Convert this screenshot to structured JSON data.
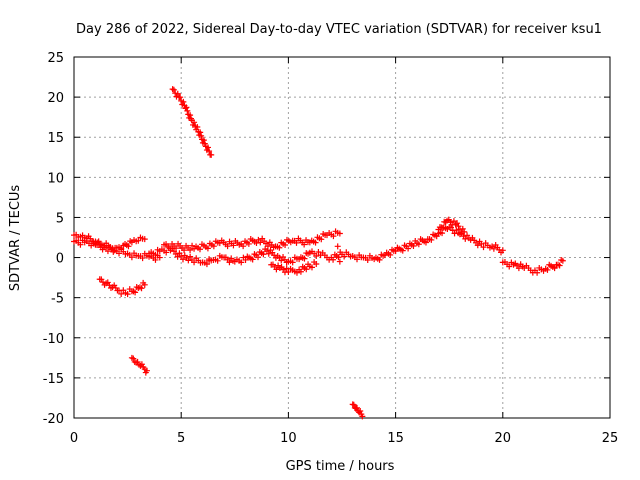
{
  "chart_data": {
    "type": "scatter",
    "title": "Day 286 of 2022, Sidereal Day-to-day VTEC variation (SDTVAR) for receiver ksu1",
    "xlabel": "GPS time / hours",
    "ylabel": "SDTVAR / TECUs",
    "xlim": [
      0,
      25
    ],
    "ylim": [
      -20,
      25
    ],
    "xticks": [
      0,
      5,
      10,
      15,
      20,
      25
    ],
    "yticks": [
      -20,
      -15,
      -10,
      -5,
      0,
      5,
      10,
      15,
      20,
      25
    ],
    "grid": true,
    "marker": "+",
    "marker_color": "#ff0000",
    "series": [
      {
        "name": "main_band_upper",
        "x": [
          0,
          0.3,
          0.6,
          1,
          1.3,
          1.7,
          2,
          2.3,
          2.7,
          3,
          3.3
        ],
        "y": [
          2.8,
          2.6,
          2.4,
          2.0,
          1.6,
          1.3,
          1.2,
          1.5,
          1.9,
          2.1,
          2.3
        ]
      },
      {
        "name": "main_band_lower",
        "x": [
          0,
          0.5,
          1,
          1.5,
          2,
          2.5,
          3,
          3.5,
          4
        ],
        "y": [
          2.0,
          1.9,
          1.6,
          1.2,
          0.8,
          0.5,
          0.2,
          0.1,
          0.0
        ]
      },
      {
        "name": "evening_arc",
        "x": [
          1.2,
          1.5,
          1.8,
          2.1,
          2.4,
          2.7,
          3,
          3.3
        ],
        "y": [
          -2.7,
          -3.2,
          -3.7,
          -4.1,
          -4.4,
          -4.2,
          -3.8,
          -3.4
        ]
      },
      {
        "name": "main_band_mid",
        "x": [
          3.5,
          4,
          4.5,
          5,
          5.5,
          6,
          6.5,
          7,
          7.5,
          8,
          8.5,
          9,
          9.5,
          10,
          10.5,
          11,
          11.5,
          12,
          12.5,
          13,
          13.5,
          14,
          14.5,
          15,
          15.5,
          16,
          16.5,
          17,
          17.5,
          18,
          18.5,
          19,
          19.5,
          20
        ],
        "y": [
          0.5,
          0.8,
          0.9,
          0.2,
          -0.3,
          -0.6,
          -0.3,
          0.0,
          -0.5,
          -0.3,
          0.3,
          0.8,
          0.2,
          -0.5,
          -0.2,
          0.6,
          0.3,
          0.0,
          0.4,
          0.2,
          0.0,
          -0.2,
          0.3,
          0.8,
          1.4,
          1.8,
          2.3,
          3.0,
          3.8,
          2.9,
          2.2,
          1.7,
          1.4,
          0.9
        ]
      },
      {
        "name": "main_band_bumps",
        "x": [
          4.2,
          5.6,
          6.8,
          7.8,
          8.6,
          9.4,
          10.2,
          11.0,
          11.8,
          12.4
        ],
        "y": [
          1.6,
          1.1,
          1.8,
          1.7,
          2.2,
          1.4,
          2.1,
          1.9,
          2.8,
          3.0
        ]
      },
      {
        "name": "late_band",
        "x": [
          20,
          20.5,
          21,
          21.5,
          22,
          22.5,
          22.8
        ],
        "y": [
          -0.6,
          -0.9,
          -1.3,
          -1.6,
          -1.4,
          -0.9,
          -0.4
        ]
      },
      {
        "name": "dip_track",
        "x": [
          9.2,
          9.6,
          10,
          10.5,
          11,
          11.3
        ],
        "y": [
          -0.9,
          -1.3,
          -1.8,
          -1.5,
          -1.1,
          -0.8
        ]
      },
      {
        "name": "rising_arc",
        "x": [
          17.0,
          17.4,
          17.8,
          18.2
        ],
        "y": [
          3.5,
          4.6,
          4.1,
          3.2
        ]
      },
      {
        "name": "steep_track_high",
        "x": [
          4.6,
          4.9,
          5.2,
          5.5,
          5.8,
          6.1,
          6.4
        ],
        "y": [
          21.0,
          20.0,
          18.6,
          17.1,
          15.7,
          14.2,
          12.8
        ]
      },
      {
        "name": "steep_track_low",
        "x": [
          2.7,
          2.9,
          3.1,
          3.3,
          3.4
        ],
        "y": [
          -12.5,
          -13.1,
          -13.5,
          -13.9,
          -14.1
        ]
      },
      {
        "name": "steep_track_bottom",
        "x": [
          13.0,
          13.15,
          13.3,
          13.45
        ],
        "y": [
          -18.3,
          -18.8,
          -19.3,
          -19.8
        ]
      },
      {
        "name": "isolated_points",
        "x": [
          12.3,
          12.4,
          6.3
        ],
        "y": [
          1.4,
          -0.5,
          -0.4
        ]
      }
    ]
  }
}
